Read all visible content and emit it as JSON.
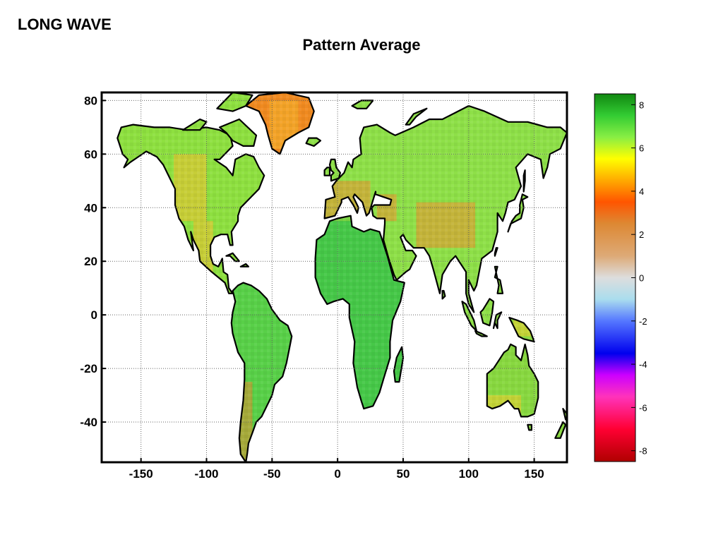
{
  "slide": {
    "corner_title": "LONG WAVE",
    "title": "Pattern Average"
  },
  "map": {
    "projection": "equirectangular",
    "lon_range": [
      -180,
      175
    ],
    "lat_range": [
      -55,
      83
    ],
    "grid": true,
    "x_ticks": [
      "-150",
      "-100",
      "-50",
      "0",
      "50",
      "100",
      "150"
    ],
    "x_tick_values": [
      -150,
      -100,
      -50,
      0,
      50,
      100,
      150
    ],
    "y_ticks": [
      "80",
      "60",
      "40",
      "20",
      "0",
      "-20",
      "-40"
    ],
    "y_tick_values": [
      80,
      60,
      40,
      20,
      0,
      -20,
      -40
    ],
    "land_fill_base": "#66dd44",
    "coastline_color": "#000000",
    "regions": [
      {
        "name": "north-america",
        "fill": "#8ee040",
        "warm": "#f5c030"
      },
      {
        "name": "greenland",
        "fill": "#f08a20",
        "warm": "#f5b830"
      },
      {
        "name": "south-america",
        "fill": "#58d048",
        "warm": "#e88a30"
      },
      {
        "name": "africa",
        "fill": "#46c848",
        "warm": "#a8e040"
      },
      {
        "name": "eurasia",
        "fill": "#8ee048",
        "warm": "#f09030"
      },
      {
        "name": "australia",
        "fill": "#88d840",
        "warm": "#f5d030"
      }
    ]
  },
  "colorbar": {
    "min": -8,
    "max": 8.5,
    "ticks": [
      "8",
      "6",
      "4",
      "2",
      "0",
      "-2",
      "-4",
      "-6",
      "-8"
    ],
    "tick_values": [
      8,
      6,
      4,
      2,
      0,
      -2,
      -4,
      -6,
      -8
    ],
    "stops": [
      {
        "v": -8.5,
        "c": "#b00000"
      },
      {
        "v": -7,
        "c": "#ff0033"
      },
      {
        "v": -5.5,
        "c": "#ff33bb"
      },
      {
        "v": -4.5,
        "c": "#cc00ff"
      },
      {
        "v": -3.5,
        "c": "#0000ee"
      },
      {
        "v": -2,
        "c": "#5577ff"
      },
      {
        "v": -1,
        "c": "#aaddee"
      },
      {
        "v": 0,
        "c": "#dddddd"
      },
      {
        "v": 1,
        "c": "#ddaa77"
      },
      {
        "v": 2.5,
        "c": "#dd8833"
      },
      {
        "v": 3.5,
        "c": "#ff5500"
      },
      {
        "v": 4.5,
        "c": "#ffaa00"
      },
      {
        "v": 5.5,
        "c": "#ffff00"
      },
      {
        "v": 6.5,
        "c": "#88ee44"
      },
      {
        "v": 7.5,
        "c": "#33cc33"
      },
      {
        "v": 8.5,
        "c": "#118811"
      }
    ]
  }
}
